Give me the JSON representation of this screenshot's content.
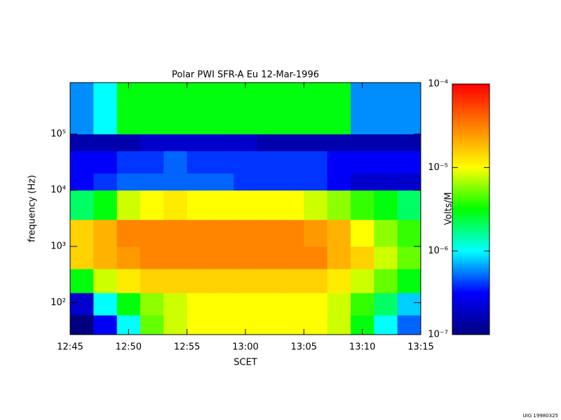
{
  "chart_data": {
    "type": "heatmap",
    "title": "Polar PWI SFR-A Eu   12-Mar-1996",
    "xlabel": "SCET",
    "ylabel": "frequency (Hz)",
    "colorbar_label": "Volts/M",
    "footer": "UIG 19980325",
    "x_bins": [
      "12:45",
      "12:47",
      "12:49",
      "12:51",
      "12:53",
      "12:55",
      "12:57",
      "12:59",
      "13:01",
      "13:03",
      "13:05",
      "13:07",
      "13:09",
      "13:11",
      "13:13",
      "13:15"
    ],
    "y_bins": [
      27,
      60,
      150,
      400,
      1000,
      3000,
      10000,
      20000,
      50000,
      100000,
      820000
    ],
    "xlim": [
      "12:45",
      "13:15"
    ],
    "xticks": [
      "12:45",
      "12:50",
      "12:55",
      "13:00",
      "13:05",
      "13:10",
      "13:15"
    ],
    "ylim": [
      27,
      820000
    ],
    "ylog": true,
    "yticks": [
      {
        "value": 100,
        "label": "10²"
      },
      {
        "value": 1000,
        "label": "10³"
      },
      {
        "value": 10000,
        "label": "10⁴"
      },
      {
        "value": 100000,
        "label": "10⁵"
      }
    ],
    "zlim": [
      1e-07,
      0.0001
    ],
    "zlog": true,
    "zticks": [
      {
        "value": 1e-07,
        "label": "10⁻⁷"
      },
      {
        "value": 1e-06,
        "label": "10⁻⁶"
      },
      {
        "value": 1e-05,
        "label": "10⁻⁵"
      },
      {
        "value": 0.0001,
        "label": "10⁻⁴"
      }
    ],
    "colorscale": [
      "#00007f",
      "#0000ff",
      "#00ffff",
      "#00ff00",
      "#ffff00",
      "#ff7f00",
      "#ff0000"
    ],
    "values": [
      [
        1e-07,
        3e-07,
        1e-06,
        5e-06,
        8e-06,
        1e-05,
        1e-05,
        1e-05,
        1e-05,
        1e-05,
        1e-05,
        8e-06,
        3e-06,
        1e-06,
        5e-07
      ],
      [
        2e-07,
        1e-06,
        3e-06,
        6e-06,
        8e-06,
        1e-05,
        1e-05,
        1e-05,
        1e-05,
        1e-05,
        1e-05,
        8e-06,
        4e-06,
        2e-06,
        8e-07
      ],
      [
        3e-06,
        8e-06,
        1.2e-05,
        1.5e-05,
        1.5e-05,
        1.5e-05,
        1.5e-05,
        1.5e-05,
        1.5e-05,
        1.5e-05,
        1.5e-05,
        1.2e-05,
        8e-06,
        5e-06,
        3e-06
      ],
      [
        1.5e-05,
        2e-05,
        2.5e-05,
        3e-05,
        3e-05,
        3e-05,
        3e-05,
        3e-05,
        3e-05,
        3e-05,
        3e-05,
        2e-05,
        1.5e-05,
        8e-06,
        5e-06
      ],
      [
        1.5e-05,
        2e-05,
        3e-05,
        3e-05,
        3e-05,
        3e-05,
        3e-05,
        3e-05,
        3e-05,
        3e-05,
        2.5e-05,
        2e-05,
        1e-05,
        6e-06,
        4e-06
      ],
      [
        2e-06,
        3e-06,
        8e-06,
        1e-05,
        1.2e-05,
        1e-05,
        1e-05,
        1e-05,
        1e-05,
        1e-05,
        8e-06,
        6e-06,
        4e-06,
        3e-06,
        2e-06
      ],
      [
        3e-07,
        4e-07,
        5e-07,
        5e-07,
        5e-07,
        5e-07,
        5e-07,
        4e-07,
        4e-07,
        4e-07,
        4e-07,
        3e-07,
        2e-07,
        2e-07,
        2e-07
      ],
      [
        3e-07,
        3e-07,
        4e-07,
        4e-07,
        5e-07,
        4e-07,
        4e-07,
        4e-07,
        4e-07,
        4e-07,
        4e-07,
        3e-07,
        3e-07,
        3e-07,
        3e-07
      ],
      [
        1.5e-07,
        1.5e-07,
        1.5e-07,
        2e-07,
        2e-07,
        2e-07,
        2e-07,
        2e-07,
        1.5e-07,
        1.5e-07,
        1.5e-07,
        1.5e-07,
        1.5e-07,
        1.5e-07,
        1.5e-07
      ],
      [
        6e-07,
        1e-06,
        3e-06,
        3e-06,
        3e-06,
        3e-06,
        3e-06,
        3e-06,
        3e-06,
        3e-06,
        3e-06,
        3e-06,
        6e-07,
        6e-07,
        6e-07
      ]
    ]
  }
}
